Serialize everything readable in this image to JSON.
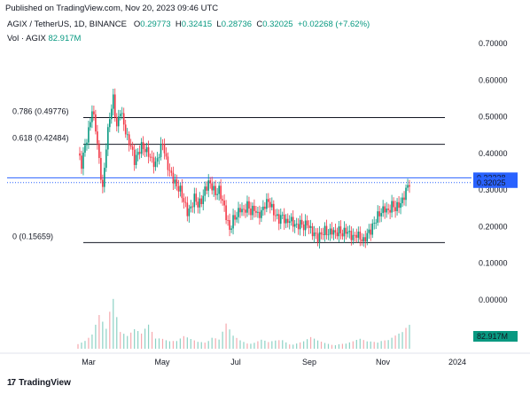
{
  "header": {
    "published": "Published on TradingView.com, Nov 20, 2023 09:46 UTC"
  },
  "legend": {
    "symbol": "AGIX / TetherUS, 1D, BINANCE",
    "open_key": "O",
    "open": "0.29773",
    "high_key": "H",
    "high": "0.32415",
    "low_key": "L",
    "low": "0.28736",
    "close_key": "C",
    "close": "0.32025",
    "change": "+0.02268 (+7.62%)"
  },
  "volume": {
    "label": "Vol · AGIX",
    "value": "82.917M"
  },
  "footer": {
    "brand": "TradingView",
    "logo": "17"
  },
  "colors": {
    "up": "#089981",
    "down": "#f23645",
    "fib_line": "#131722",
    "price_line": "#2962ff",
    "vol_label_bg": "#089981"
  },
  "chart_data": {
    "type": "candlestick",
    "y_ticks": [
      "0.70000",
      "0.60000",
      "0.50000",
      "0.40000",
      "0.30000",
      "0.20000",
      "0.10000",
      "0.00000"
    ],
    "y_tick_values": [
      0.7,
      0.6,
      0.5,
      0.4,
      0.3,
      0.2,
      0.1,
      0.0
    ],
    "ylim": [
      0.0,
      0.73
    ],
    "x_ticks": [
      "Mar",
      "May",
      "Jul",
      "Sep",
      "Nov",
      "2024"
    ],
    "fib_levels": [
      {
        "label": "0.786 (0.49776)",
        "value": 0.49776
      },
      {
        "label": "0.618 (0.42484)",
        "value": 0.42484
      },
      {
        "label": "0 (0.15659)",
        "value": 0.15659
      }
    ],
    "price_labels": [
      {
        "label": "0.33338",
        "value": 0.33338
      },
      {
        "label": "0.32025",
        "value": 0.32025
      }
    ],
    "volume_label": "82.917M",
    "price_path": [
      [
        0,
        0.4
      ],
      [
        2,
        0.37
      ],
      [
        4,
        0.42
      ],
      [
        6,
        0.46
      ],
      [
        8,
        0.52
      ],
      [
        10,
        0.47
      ],
      [
        12,
        0.38
      ],
      [
        14,
        0.3
      ],
      [
        16,
        0.42
      ],
      [
        18,
        0.5
      ],
      [
        20,
        0.55
      ],
      [
        22,
        0.47
      ],
      [
        24,
        0.52
      ],
      [
        26,
        0.48
      ],
      [
        28,
        0.44
      ],
      [
        30,
        0.42
      ],
      [
        32,
        0.38
      ],
      [
        34,
        0.4
      ],
      [
        36,
        0.42
      ],
      [
        38,
        0.41
      ],
      [
        40,
        0.4
      ],
      [
        42,
        0.38
      ],
      [
        44,
        0.37
      ],
      [
        46,
        0.4
      ],
      [
        48,
        0.43
      ],
      [
        50,
        0.38
      ],
      [
        52,
        0.35
      ],
      [
        54,
        0.33
      ],
      [
        56,
        0.31
      ],
      [
        58,
        0.3
      ],
      [
        60,
        0.27
      ],
      [
        62,
        0.24
      ],
      [
        64,
        0.25
      ],
      [
        66,
        0.28
      ],
      [
        68,
        0.26
      ],
      [
        70,
        0.27
      ],
      [
        72,
        0.3
      ],
      [
        74,
        0.32
      ],
      [
        76,
        0.31
      ],
      [
        78,
        0.29
      ],
      [
        80,
        0.3
      ],
      [
        82,
        0.27
      ],
      [
        84,
        0.23
      ],
      [
        86,
        0.19
      ],
      [
        88,
        0.22
      ],
      [
        90,
        0.23
      ],
      [
        92,
        0.25
      ],
      [
        94,
        0.24
      ],
      [
        96,
        0.26
      ],
      [
        98,
        0.24
      ],
      [
        100,
        0.25
      ],
      [
        102,
        0.23
      ],
      [
        104,
        0.24
      ],
      [
        106,
        0.26
      ],
      [
        108,
        0.27
      ],
      [
        110,
        0.25
      ],
      [
        112,
        0.23
      ],
      [
        114,
        0.22
      ],
      [
        116,
        0.23
      ],
      [
        118,
        0.21
      ],
      [
        120,
        0.22
      ],
      [
        122,
        0.21
      ],
      [
        124,
        0.2
      ],
      [
        126,
        0.21
      ],
      [
        128,
        0.2
      ],
      [
        130,
        0.21
      ],
      [
        132,
        0.19
      ],
      [
        134,
        0.18
      ],
      [
        136,
        0.17
      ],
      [
        138,
        0.18
      ],
      [
        140,
        0.19
      ],
      [
        142,
        0.18
      ],
      [
        144,
        0.19
      ],
      [
        146,
        0.18
      ],
      [
        148,
        0.19
      ],
      [
        150,
        0.18
      ],
      [
        152,
        0.19
      ],
      [
        154,
        0.18
      ],
      [
        156,
        0.17
      ],
      [
        158,
        0.18
      ],
      [
        160,
        0.17
      ],
      [
        162,
        0.16
      ],
      [
        164,
        0.18
      ],
      [
        166,
        0.19
      ],
      [
        168,
        0.21
      ],
      [
        170,
        0.23
      ],
      [
        172,
        0.24
      ],
      [
        174,
        0.25
      ],
      [
        176,
        0.24
      ],
      [
        178,
        0.26
      ],
      [
        180,
        0.25
      ],
      [
        182,
        0.26
      ],
      [
        184,
        0.27
      ],
      [
        186,
        0.3
      ],
      [
        188,
        0.32
      ]
    ],
    "volume_path": [
      [
        0,
        0.1
      ],
      [
        4,
        0.12
      ],
      [
        8,
        0.18
      ],
      [
        12,
        0.4
      ],
      [
        16,
        0.25
      ],
      [
        20,
        0.75
      ],
      [
        24,
        0.35
      ],
      [
        28,
        0.2
      ],
      [
        32,
        0.25
      ],
      [
        36,
        0.18
      ],
      [
        40,
        0.3
      ],
      [
        44,
        0.15
      ],
      [
        48,
        0.2
      ],
      [
        52,
        0.12
      ],
      [
        56,
        0.1
      ],
      [
        60,
        0.15
      ],
      [
        64,
        0.12
      ],
      [
        68,
        0.1
      ],
      [
        72,
        0.12
      ],
      [
        76,
        0.18
      ],
      [
        80,
        0.12
      ],
      [
        84,
        0.3
      ],
      [
        88,
        0.16
      ],
      [
        92,
        0.12
      ],
      [
        96,
        0.1
      ],
      [
        100,
        0.1
      ],
      [
        104,
        0.12
      ],
      [
        108,
        0.08
      ],
      [
        112,
        0.1
      ],
      [
        116,
        0.12
      ],
      [
        120,
        0.08
      ],
      [
        124,
        0.09
      ],
      [
        128,
        0.1
      ],
      [
        132,
        0.14
      ],
      [
        136,
        0.1
      ],
      [
        140,
        0.08
      ],
      [
        144,
        0.07
      ],
      [
        148,
        0.08
      ],
      [
        152,
        0.07
      ],
      [
        156,
        0.09
      ],
      [
        160,
        0.12
      ],
      [
        164,
        0.1
      ],
      [
        168,
        0.12
      ],
      [
        172,
        0.14
      ],
      [
        176,
        0.12
      ],
      [
        180,
        0.16
      ],
      [
        184,
        0.2
      ],
      [
        188,
        0.32
      ]
    ]
  }
}
